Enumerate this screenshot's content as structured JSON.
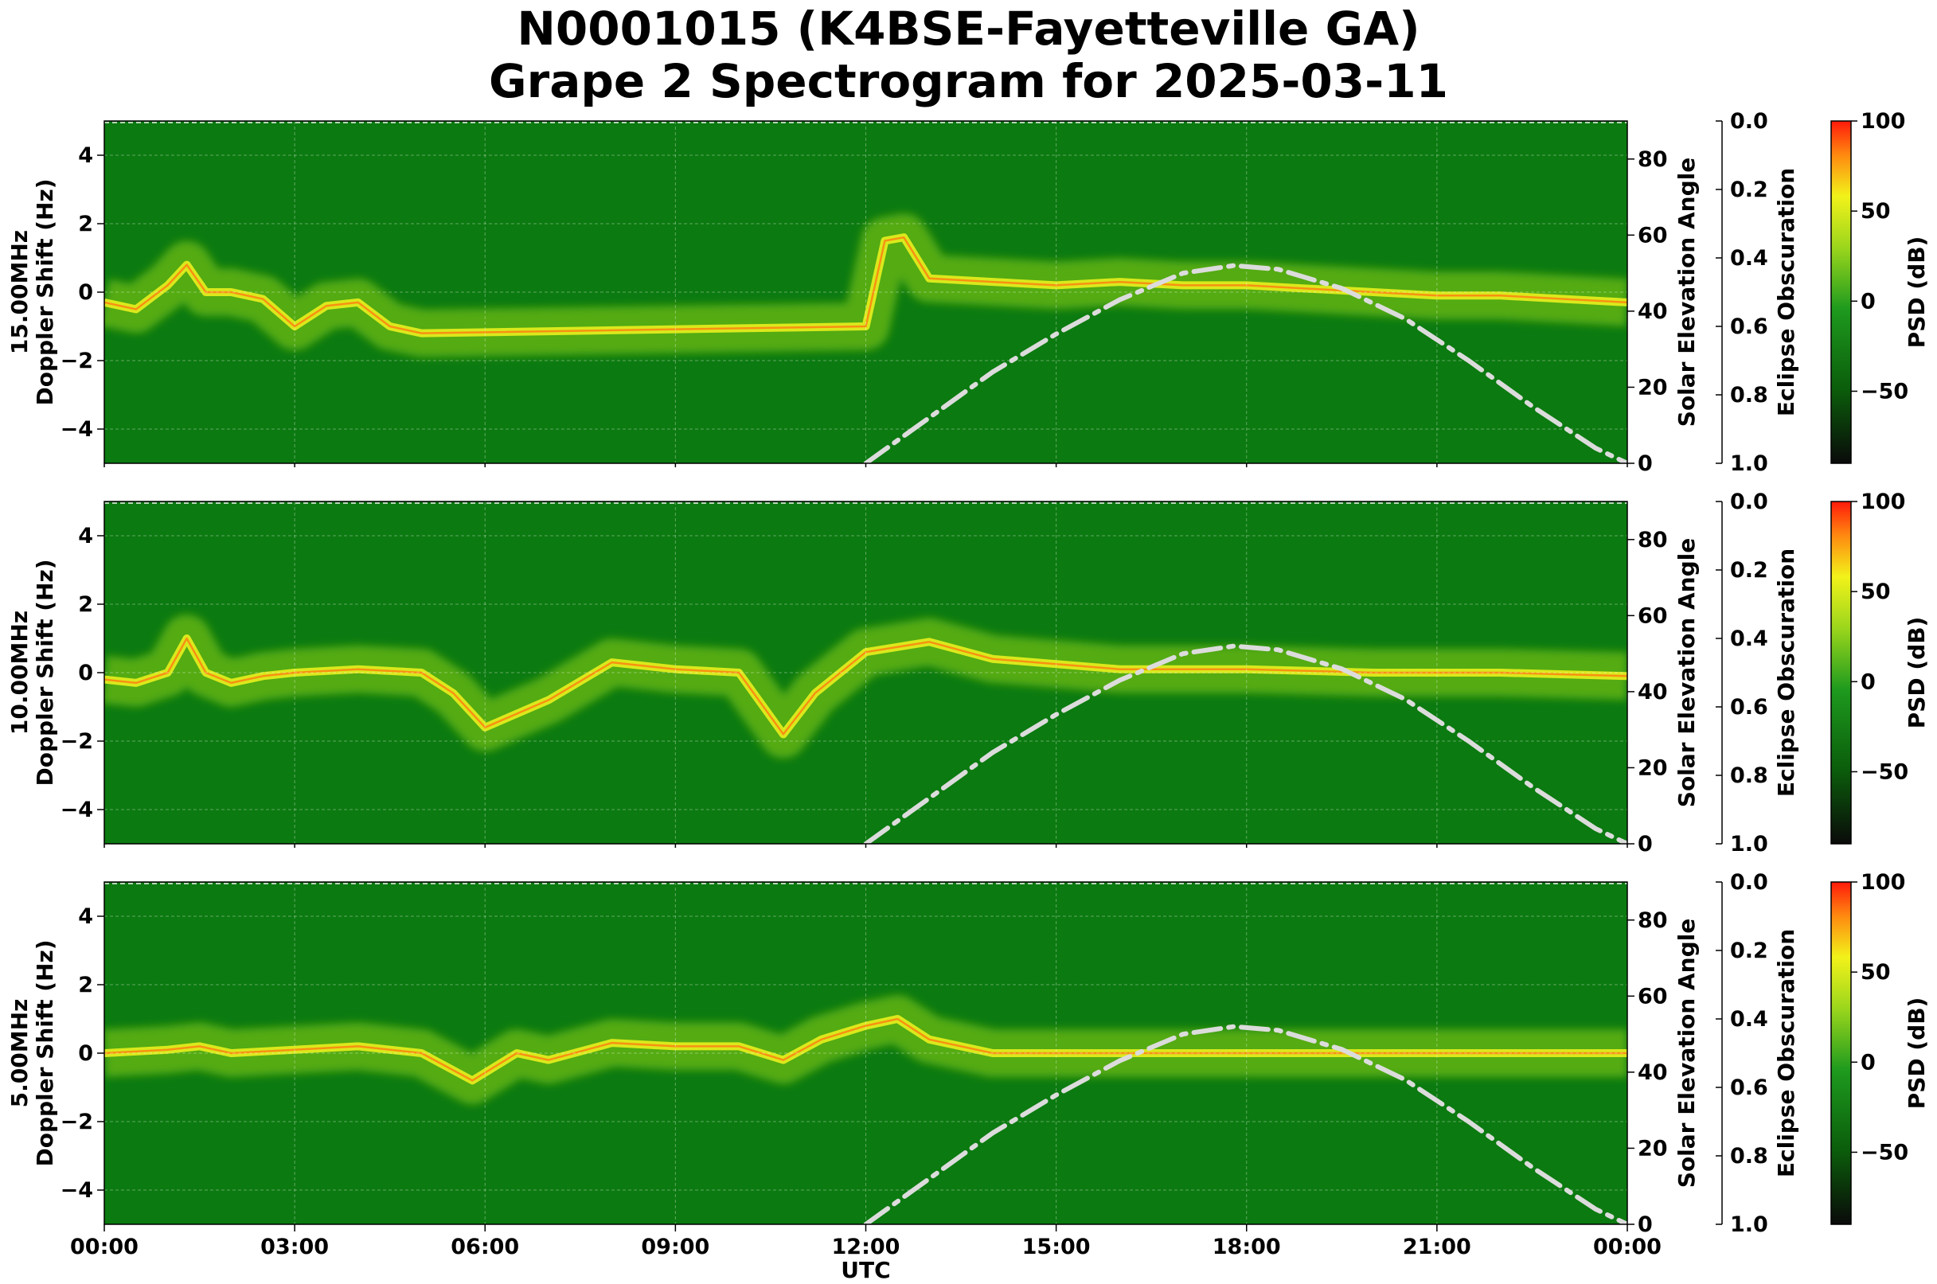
{
  "title_line1": "N0001015 (K4BSE-Fayetteville GA)",
  "title_line2": "Grape 2 Spectrogram for 2025-03-11",
  "colors": {
    "spectro_background": "#0b7a10",
    "solar_curve": "#dcdcdc",
    "colorbar_stops": [
      "#0a0a0a",
      "#0b5e0b",
      "#1e9a1e",
      "#9bd61c",
      "#f2f21a",
      "#ff8a10",
      "#ff1a0a"
    ]
  },
  "chart_data": [
    {
      "type": "heatmap",
      "panel_label": "15.00MHz",
      "ylabel": "15.00MHz\nDoppler Shift (Hz)",
      "ylim": [
        -5,
        5
      ],
      "yticks": [
        4,
        2,
        0,
        -2,
        -4
      ],
      "xlim": [
        0,
        24
      ],
      "xticks": [
        "00:00",
        "03:00",
        "06:00",
        "09:00",
        "12:00",
        "15:00",
        "18:00",
        "21:00",
        "00:00"
      ],
      "grid": true,
      "right_axis": {
        "label": "Solar Elevation Angle",
        "ylim": [
          0,
          90
        ],
        "ticks": [
          0,
          20,
          40,
          60,
          80
        ]
      },
      "eclipse_axis": {
        "label": "Eclipse Obscuration",
        "ylim": [
          1.0,
          0.0
        ],
        "ticks": [
          "0.0",
          "0.2",
          "0.4",
          "0.6",
          "0.8",
          "1.0"
        ]
      },
      "colorbar": {
        "label": "PSD (dB)",
        "range": [
          -90,
          100
        ],
        "ticks": [
          100,
          50,
          0,
          -50
        ]
      },
      "doppler_trace": {
        "x": [
          0,
          0.5,
          1.0,
          1.3,
          1.6,
          2.0,
          2.5,
          3.0,
          3.5,
          4.0,
          4.5,
          5.0,
          12.0,
          12.3,
          12.6,
          13.0,
          14.0,
          15.0,
          16.0,
          17.0,
          18.0,
          19.0,
          20.0,
          21.0,
          22.0,
          23.0,
          24.0
        ],
        "y": [
          -0.3,
          -0.5,
          0.2,
          0.8,
          0.0,
          0.0,
          -0.2,
          -1.0,
          -0.4,
          -0.3,
          -1.0,
          -1.2,
          -1.0,
          1.5,
          1.6,
          0.4,
          0.3,
          0.2,
          0.3,
          0.2,
          0.2,
          0.1,
          0.0,
          -0.1,
          -0.1,
          -0.2,
          -0.3
        ]
      },
      "solar_elevation": {
        "x": [
          12,
          13,
          14,
          15,
          16,
          17,
          17.8,
          18.5,
          19.5,
          20.5,
          21.5,
          22.5,
          23.5,
          24
        ],
        "y": [
          0,
          12,
          24,
          34,
          43,
          50,
          52,
          51,
          46,
          38,
          27,
          15,
          4,
          0
        ]
      }
    },
    {
      "type": "heatmap",
      "panel_label": "10.00MHz",
      "ylabel": "10.00MHz\nDoppler Shift (Hz)",
      "ylim": [
        -5,
        5
      ],
      "yticks": [
        4,
        2,
        0,
        -2,
        -4
      ],
      "xlim": [
        0,
        24
      ],
      "xticks": [
        "00:00",
        "03:00",
        "06:00",
        "09:00",
        "12:00",
        "15:00",
        "18:00",
        "21:00",
        "00:00"
      ],
      "grid": true,
      "right_axis": {
        "label": "Solar Elevation Angle",
        "ylim": [
          0,
          90
        ],
        "ticks": [
          0,
          20,
          40,
          60,
          80
        ]
      },
      "eclipse_axis": {
        "label": "Eclipse Obscuration",
        "ylim": [
          1.0,
          0.0
        ],
        "ticks": [
          "0.0",
          "0.2",
          "0.4",
          "0.6",
          "0.8",
          "1.0"
        ]
      },
      "colorbar": {
        "label": "PSD (dB)",
        "range": [
          -90,
          100
        ],
        "ticks": [
          100,
          50,
          0,
          -50
        ]
      },
      "doppler_trace": {
        "x": [
          0,
          0.5,
          1.0,
          1.3,
          1.6,
          2.0,
          2.5,
          3.0,
          4.0,
          5.0,
          5.5,
          6.0,
          7.0,
          8.0,
          9.0,
          10.0,
          10.7,
          11.2,
          12.0,
          13.0,
          14.0,
          16.0,
          18.0,
          20.0,
          22.0,
          24.0
        ],
        "y": [
          -0.2,
          -0.3,
          0.0,
          1.0,
          0.0,
          -0.3,
          -0.1,
          0.0,
          0.1,
          0.0,
          -0.6,
          -1.6,
          -0.8,
          0.3,
          0.1,
          0.0,
          -1.8,
          -0.6,
          0.6,
          0.9,
          0.4,
          0.1,
          0.1,
          0.0,
          0.0,
          -0.1
        ]
      },
      "solar_elevation": {
        "x": [
          12,
          13,
          14,
          15,
          16,
          17,
          17.8,
          18.5,
          19.5,
          20.5,
          21.5,
          22.5,
          23.5,
          24
        ],
        "y": [
          0,
          12,
          24,
          34,
          43,
          50,
          52,
          51,
          46,
          38,
          27,
          15,
          4,
          0
        ]
      }
    },
    {
      "type": "heatmap",
      "panel_label": "5.00MHz",
      "ylabel": "5.00MHz\nDoppler Shift (Hz)",
      "ylim": [
        -5,
        5
      ],
      "yticks": [
        4,
        2,
        0,
        -2,
        -4
      ],
      "xlim": [
        0,
        24
      ],
      "xticks": [
        "00:00",
        "03:00",
        "06:00",
        "09:00",
        "12:00",
        "15:00",
        "18:00",
        "21:00",
        "00:00"
      ],
      "xlabel": "UTC",
      "grid": true,
      "right_axis": {
        "label": "Solar Elevation Angle",
        "ylim": [
          0,
          90
        ],
        "ticks": [
          0,
          20,
          40,
          60,
          80
        ]
      },
      "eclipse_axis": {
        "label": "Eclipse Obscuration",
        "ylim": [
          1.0,
          0.0
        ],
        "ticks": [
          "0.0",
          "0.2",
          "0.4",
          "0.6",
          "0.8",
          "1.0"
        ]
      },
      "colorbar": {
        "label": "PSD (dB)",
        "range": [
          -90,
          100
        ],
        "ticks": [
          100,
          50,
          0,
          -50
        ]
      },
      "doppler_trace": {
        "x": [
          0,
          1.0,
          1.5,
          2.0,
          3.0,
          4.0,
          5.0,
          5.8,
          6.5,
          7.0,
          8.0,
          9.0,
          10.0,
          10.7,
          11.3,
          12.0,
          12.5,
          13.0,
          14.0,
          16.0,
          18.0,
          20.0,
          22.0,
          24.0
        ],
        "y": [
          0.0,
          0.1,
          0.2,
          0.0,
          0.1,
          0.2,
          0.0,
          -0.8,
          0.0,
          -0.2,
          0.3,
          0.2,
          0.2,
          -0.2,
          0.4,
          0.8,
          1.0,
          0.4,
          0.0,
          0.0,
          0.0,
          0.0,
          0.0,
          0.0
        ]
      },
      "solar_elevation": {
        "x": [
          12,
          13,
          14,
          15,
          16,
          17,
          17.8,
          18.5,
          19.5,
          20.5,
          21.5,
          22.5,
          23.5,
          24
        ],
        "y": [
          0,
          12,
          24,
          34,
          43,
          50,
          52,
          51,
          46,
          38,
          27,
          15,
          4,
          0
        ]
      }
    }
  ]
}
